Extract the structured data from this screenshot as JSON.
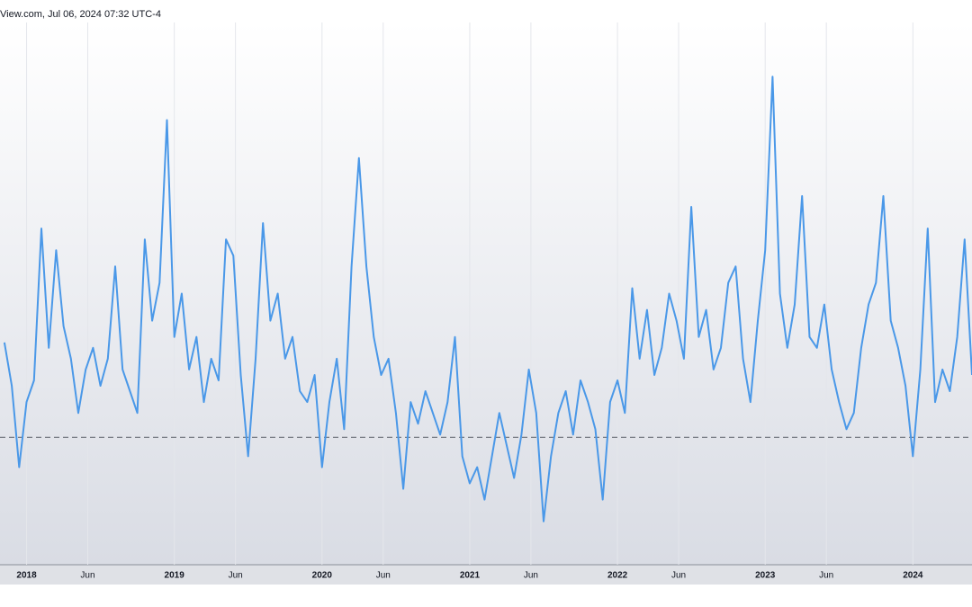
{
  "chart_data": {
    "type": "line",
    "header": "View.com, Jul 06, 2024 07:32 UTC-4",
    "xlim": [
      2017.82,
      2024.4
    ],
    "ylim": [
      0,
      100
    ],
    "xticks": [
      {
        "value": 2018,
        "label": "2018"
      },
      {
        "value": 2018.414,
        "label": "Jun"
      },
      {
        "value": 2019,
        "label": "2019"
      },
      {
        "value": 2019.414,
        "label": "Jun"
      },
      {
        "value": 2020,
        "label": "2020"
      },
      {
        "value": 2020.414,
        "label": "Jun"
      },
      {
        "value": 2021,
        "label": "2021"
      },
      {
        "value": 2021.414,
        "label": "Jun"
      },
      {
        "value": 2022,
        "label": "2022"
      },
      {
        "value": 2022.414,
        "label": "Jun"
      },
      {
        "value": 2023,
        "label": "2023"
      },
      {
        "value": 2023.414,
        "label": "Jun"
      },
      {
        "value": 2024,
        "label": "2024"
      }
    ],
    "grid": true,
    "reference_line": 23.5,
    "color": "#4a98e8",
    "x": [
      2017.85,
      2017.9,
      2017.95,
      2018.0,
      2018.05,
      2018.1,
      2018.15,
      2018.2,
      2018.25,
      2018.3,
      2018.35,
      2018.4,
      2018.45,
      2018.5,
      2018.55,
      2018.6,
      2018.65,
      2018.7,
      2018.75,
      2018.8,
      2018.85,
      2018.9,
      2018.95,
      2019.0,
      2019.05,
      2019.1,
      2019.15,
      2019.2,
      2019.25,
      2019.3,
      2019.35,
      2019.4,
      2019.45,
      2019.5,
      2019.55,
      2019.6,
      2019.65,
      2019.7,
      2019.75,
      2019.8,
      2019.85,
      2019.9,
      2019.95,
      2020.0,
      2020.05,
      2020.1,
      2020.15,
      2020.2,
      2020.25,
      2020.3,
      2020.35,
      2020.4,
      2020.45,
      2020.5,
      2020.55,
      2020.6,
      2020.65,
      2020.7,
      2020.75,
      2020.8,
      2020.85,
      2020.9,
      2020.95,
      2021.0,
      2021.05,
      2021.1,
      2021.15,
      2021.2,
      2021.25,
      2021.3,
      2021.35,
      2021.4,
      2021.45,
      2021.5,
      2021.55,
      2021.6,
      2021.65,
      2021.7,
      2021.75,
      2021.8,
      2021.85,
      2021.9,
      2021.95,
      2022.0,
      2022.05,
      2022.1,
      2022.15,
      2022.2,
      2022.25,
      2022.3,
      2022.35,
      2022.4,
      2022.45,
      2022.5,
      2022.55,
      2022.6,
      2022.65,
      2022.7,
      2022.75,
      2022.8,
      2022.85,
      2022.9,
      2022.95,
      2023.0,
      2023.05,
      2023.1,
      2023.15,
      2023.2,
      2023.25,
      2023.3,
      2023.35,
      2023.4,
      2023.45,
      2023.5,
      2023.55,
      2023.6,
      2023.65,
      2023.7,
      2023.75,
      2023.8,
      2023.85,
      2023.9,
      2023.95,
      2024.0,
      2024.05,
      2024.1,
      2024.15,
      2024.2,
      2024.25,
      2024.3,
      2024.35,
      2024.4
    ],
    "values": [
      41,
      33,
      18,
      30,
      34,
      62,
      40,
      58,
      44,
      38,
      28,
      36,
      40,
      33,
      38,
      55,
      36,
      32,
      28,
      60,
      45,
      52,
      82,
      42,
      50,
      36,
      42,
      30,
      38,
      34,
      60,
      57,
      35,
      20,
      38,
      63,
      45,
      50,
      38,
      42,
      32,
      30,
      35,
      18,
      30,
      38,
      25,
      55,
      75,
      55,
      42,
      35,
      38,
      28,
      14,
      30,
      26,
      32,
      28,
      24,
      30,
      42,
      20,
      15,
      18,
      12,
      20,
      28,
      22,
      16,
      24,
      36,
      28,
      8,
      20,
      28,
      32,
      24,
      34,
      30,
      25,
      12,
      30,
      34,
      28,
      51,
      38,
      47,
      35,
      40,
      50,
      45,
      38,
      66,
      42,
      47,
      36,
      40,
      52,
      55,
      38,
      30,
      45,
      58,
      90,
      50,
      40,
      48,
      68,
      42,
      40,
      48,
      36,
      30,
      25,
      28,
      40,
      48,
      52,
      68,
      45,
      40,
      33,
      20,
      36,
      62,
      30,
      36,
      32,
      42,
      60,
      35
    ]
  }
}
